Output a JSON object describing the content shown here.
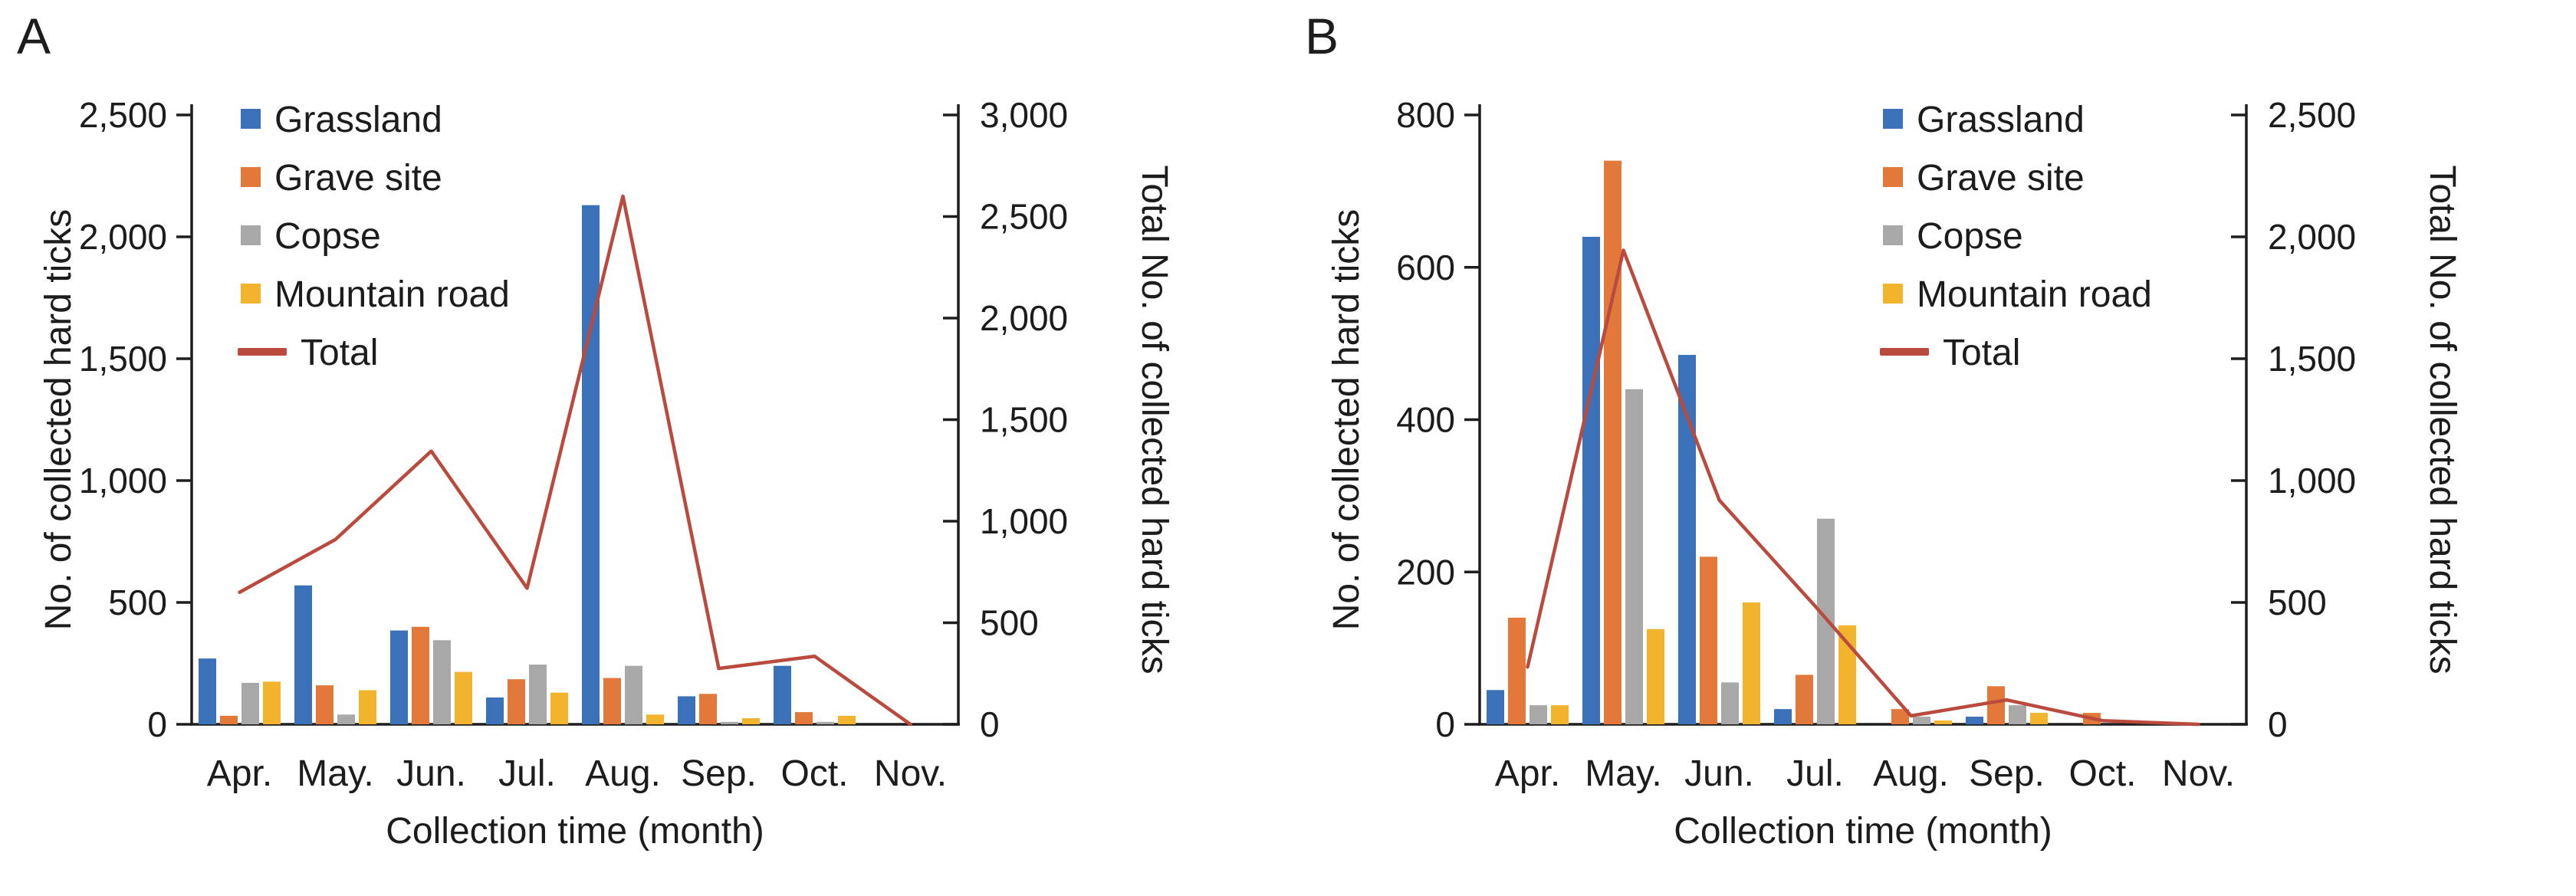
{
  "figure": {
    "background": "#ffffff",
    "x_axis_title": "Collection time (month)"
  },
  "colors": {
    "grassland": "#3b71b8",
    "grave_site": "#e2793a",
    "copse": "#a8a8a8",
    "mountain_road": "#f2b42d",
    "total_line": "#bb4a3e",
    "axis": "#1e1e1e",
    "text": "#1c1c1c"
  },
  "chart_data": [
    {
      "type": "bar+line",
      "panel_label": "A",
      "categories": [
        "Apr.",
        "May.",
        "Jun.",
        "Jul.",
        "Aug.",
        "Sep.",
        "Oct.",
        "Nov."
      ],
      "series": [
        {
          "name": "Grassland",
          "color": "#3b71b8",
          "axis": "left",
          "values": [
            270,
            570,
            385,
            110,
            2130,
            115,
            240,
            0
          ]
        },
        {
          "name": "Grave site",
          "color": "#e2793a",
          "axis": "left",
          "values": [
            35,
            160,
            400,
            185,
            190,
            125,
            50,
            0
          ]
        },
        {
          "name": "Copse",
          "color": "#a8a8a8",
          "axis": "left",
          "values": [
            170,
            40,
            345,
            245,
            240,
            10,
            10,
            0
          ]
        },
        {
          "name": "Mountain road",
          "color": "#f2b42d",
          "axis": "left",
          "values": [
            175,
            140,
            215,
            130,
            40,
            25,
            35,
            0
          ]
        }
      ],
      "line": {
        "name": "Total",
        "color": "#bb4a3e",
        "axis": "right",
        "values": [
          650,
          910,
          1345,
          670,
          2600,
          275,
          335,
          0
        ]
      },
      "left_axis": {
        "title": "No. of collected hard ticks",
        "min": 0,
        "max": 2500,
        "step": 500,
        "ticks": [
          "0",
          "500",
          "1,000",
          "1,500",
          "2,000",
          "2,500"
        ]
      },
      "right_axis": {
        "title": "Total No. of collected hard ticks",
        "min": 0,
        "max": 3000,
        "step": 500,
        "ticks": [
          "0",
          "500",
          "1,000",
          "1,500",
          "2,000",
          "2,500",
          "3,000"
        ]
      },
      "x_axis": {
        "title": "Collection time (month)"
      },
      "legend": {
        "position": "top-left",
        "entries": [
          "Grassland",
          "Grave site",
          "Copse",
          "Mountain road",
          "Total"
        ]
      },
      "grid": "off"
    },
    {
      "type": "bar+line",
      "panel_label": "B",
      "categories": [
        "Apr.",
        "May.",
        "Jun.",
        "Jul.",
        "Aug.",
        "Sep.",
        "Oct.",
        "Nov."
      ],
      "series": [
        {
          "name": "Grassland",
          "color": "#3b71b8",
          "axis": "left",
          "values": [
            45,
            640,
            485,
            20,
            0,
            10,
            0,
            0
          ]
        },
        {
          "name": "Grave site",
          "color": "#e2793a",
          "axis": "left",
          "values": [
            140,
            740,
            220,
            65,
            20,
            50,
            15,
            0
          ]
        },
        {
          "name": "Copse",
          "color": "#a8a8a8",
          "axis": "left",
          "values": [
            25,
            440,
            55,
            270,
            10,
            25,
            0,
            0
          ]
        },
        {
          "name": "Mountain road",
          "color": "#f2b42d",
          "axis": "left",
          "values": [
            25,
            125,
            160,
            130,
            5,
            15,
            0,
            0
          ]
        }
      ],
      "line": {
        "name": "Total",
        "color": "#bb4a3e",
        "axis": "right",
        "values": [
          235,
          1945,
          920,
          485,
          35,
          100,
          15,
          0
        ]
      },
      "left_axis": {
        "title": "No. of collected hard ticks",
        "min": 0,
        "max": 800,
        "step": 200,
        "ticks": [
          "0",
          "200",
          "400",
          "600",
          "800"
        ]
      },
      "right_axis": {
        "title": "Total No. of collected hard ticks",
        "min": 0,
        "max": 2500,
        "step": 500,
        "ticks": [
          "0",
          "500",
          "1,000",
          "1,500",
          "2,000",
          "2,500"
        ]
      },
      "x_axis": {
        "title": "Collection time (month)"
      },
      "legend": {
        "position": "top-right",
        "entries": [
          "Grassland",
          "Grave site",
          "Copse",
          "Mountain road",
          "Total"
        ]
      },
      "grid": "off"
    }
  ]
}
